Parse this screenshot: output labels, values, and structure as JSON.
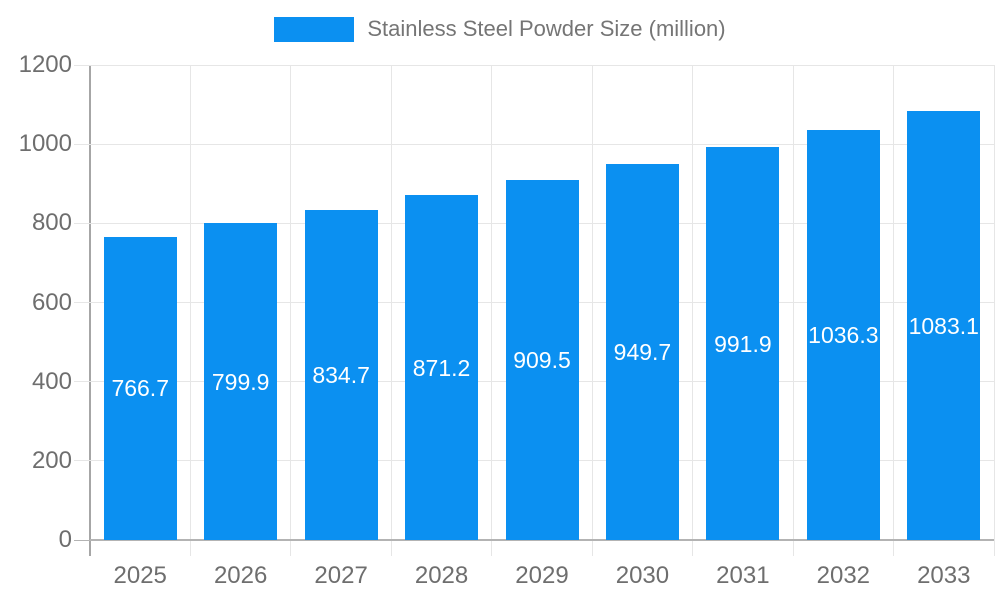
{
  "legend": {
    "label": "Stainless Steel Powder Size (million)"
  },
  "colors": {
    "bar": "#0b90f1",
    "gridline": "#e6e6e6",
    "axis_line": "#a6a6a6",
    "baseline": "#b3b3b3",
    "y_tick_label": "#6e6e6e",
    "x_tick_label": "#6e6e6e",
    "legend_text": "#757575",
    "data_label": "#ffffff",
    "background": "#ffffff"
  },
  "chart_data": {
    "type": "bar",
    "categories": [
      "2025",
      "2026",
      "2027",
      "2028",
      "2029",
      "2030",
      "2031",
      "2032",
      "2033"
    ],
    "series": [
      {
        "name": "Stainless Steel Powder Size (million)",
        "values": [
          766.7,
          799.9,
          834.7,
          871.2,
          909.5,
          949.7,
          991.9,
          1036.3,
          1083.1
        ]
      }
    ],
    "data_labels": [
      "766.7",
      "799.9",
      "834.7",
      "871.2",
      "909.5",
      "949.7",
      "991.9",
      "1036.3",
      "1083.1"
    ],
    "title": "",
    "xlabel": "",
    "ylabel": "",
    "ylim": [
      0,
      1200
    ],
    "yticks": [
      0,
      200,
      400,
      600,
      800,
      1000,
      1200
    ],
    "grid": true,
    "legend_position": "top",
    "data_label_position": "inside-center"
  }
}
